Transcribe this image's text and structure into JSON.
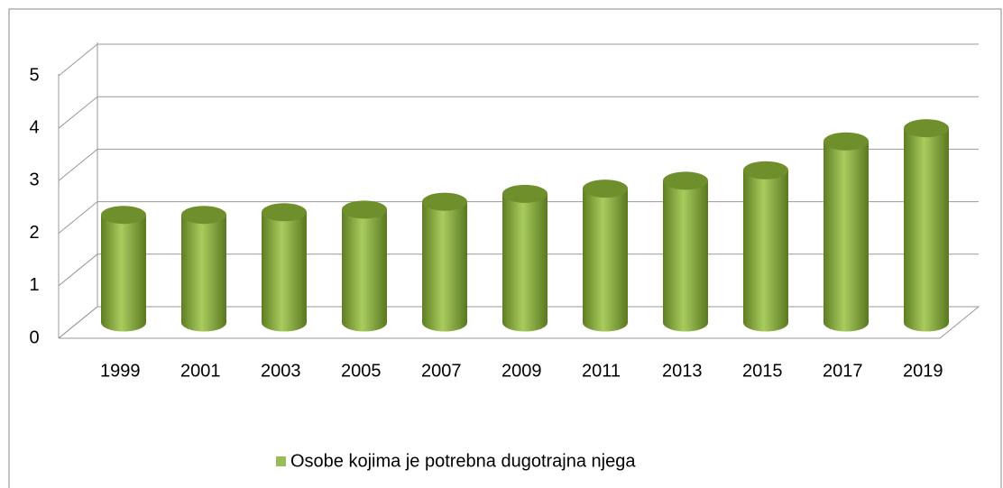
{
  "chart_data": {
    "type": "bar3d",
    "categories": [
      "1999",
      "2001",
      "2003",
      "2005",
      "2007",
      "2009",
      "2011",
      "2013",
      "2015",
      "2017",
      "2019"
    ],
    "series": [
      {
        "name": "Osobe kojima je potrebna dugotrajna njega",
        "color": "#9bbb59",
        "values": [
          2.05,
          2.05,
          2.1,
          2.15,
          2.3,
          2.45,
          2.55,
          2.7,
          2.9,
          3.45,
          3.7
        ]
      }
    ],
    "ylim": [
      0,
      5
    ],
    "yticks": [
      0,
      1,
      2,
      3,
      4,
      5
    ],
    "grid": true,
    "legend": "bottom"
  }
}
